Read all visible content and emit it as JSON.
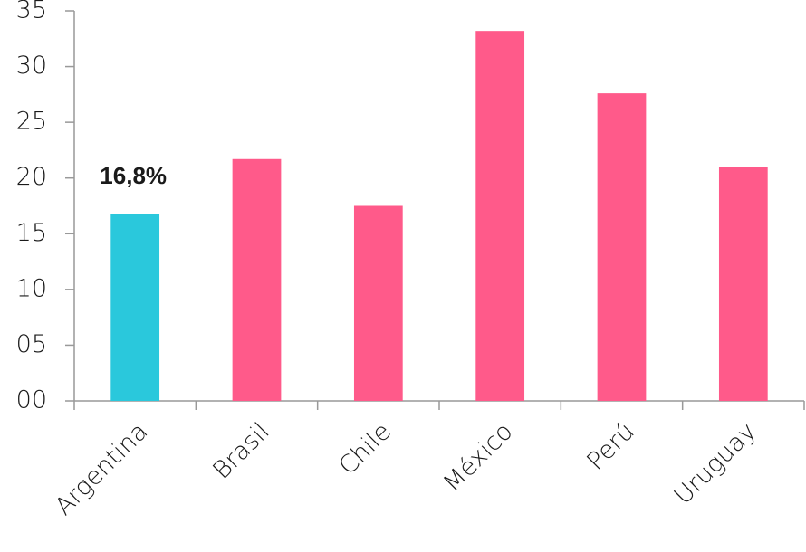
{
  "chart_data": {
    "type": "bar",
    "categories": [
      "Argentina",
      "Brasil",
      "Chile",
      "México",
      "Perú",
      "Uruguay"
    ],
    "values": [
      16.8,
      21.7,
      17.5,
      33.2,
      27.6,
      21.0
    ],
    "value_labels": [
      "16,8%",
      null,
      null,
      null,
      null,
      null
    ],
    "colors": [
      "#2ac8dc",
      "#ff5a8a",
      "#ff5a8a",
      "#ff5a8a",
      "#ff5a8a",
      "#ff5a8a"
    ],
    "ylim": [
      0,
      35
    ],
    "yticks": [
      {
        "value": 0,
        "label": "00"
      },
      {
        "value": 5,
        "label": "05"
      },
      10,
      15,
      20,
      25,
      30,
      35
    ]
  }
}
